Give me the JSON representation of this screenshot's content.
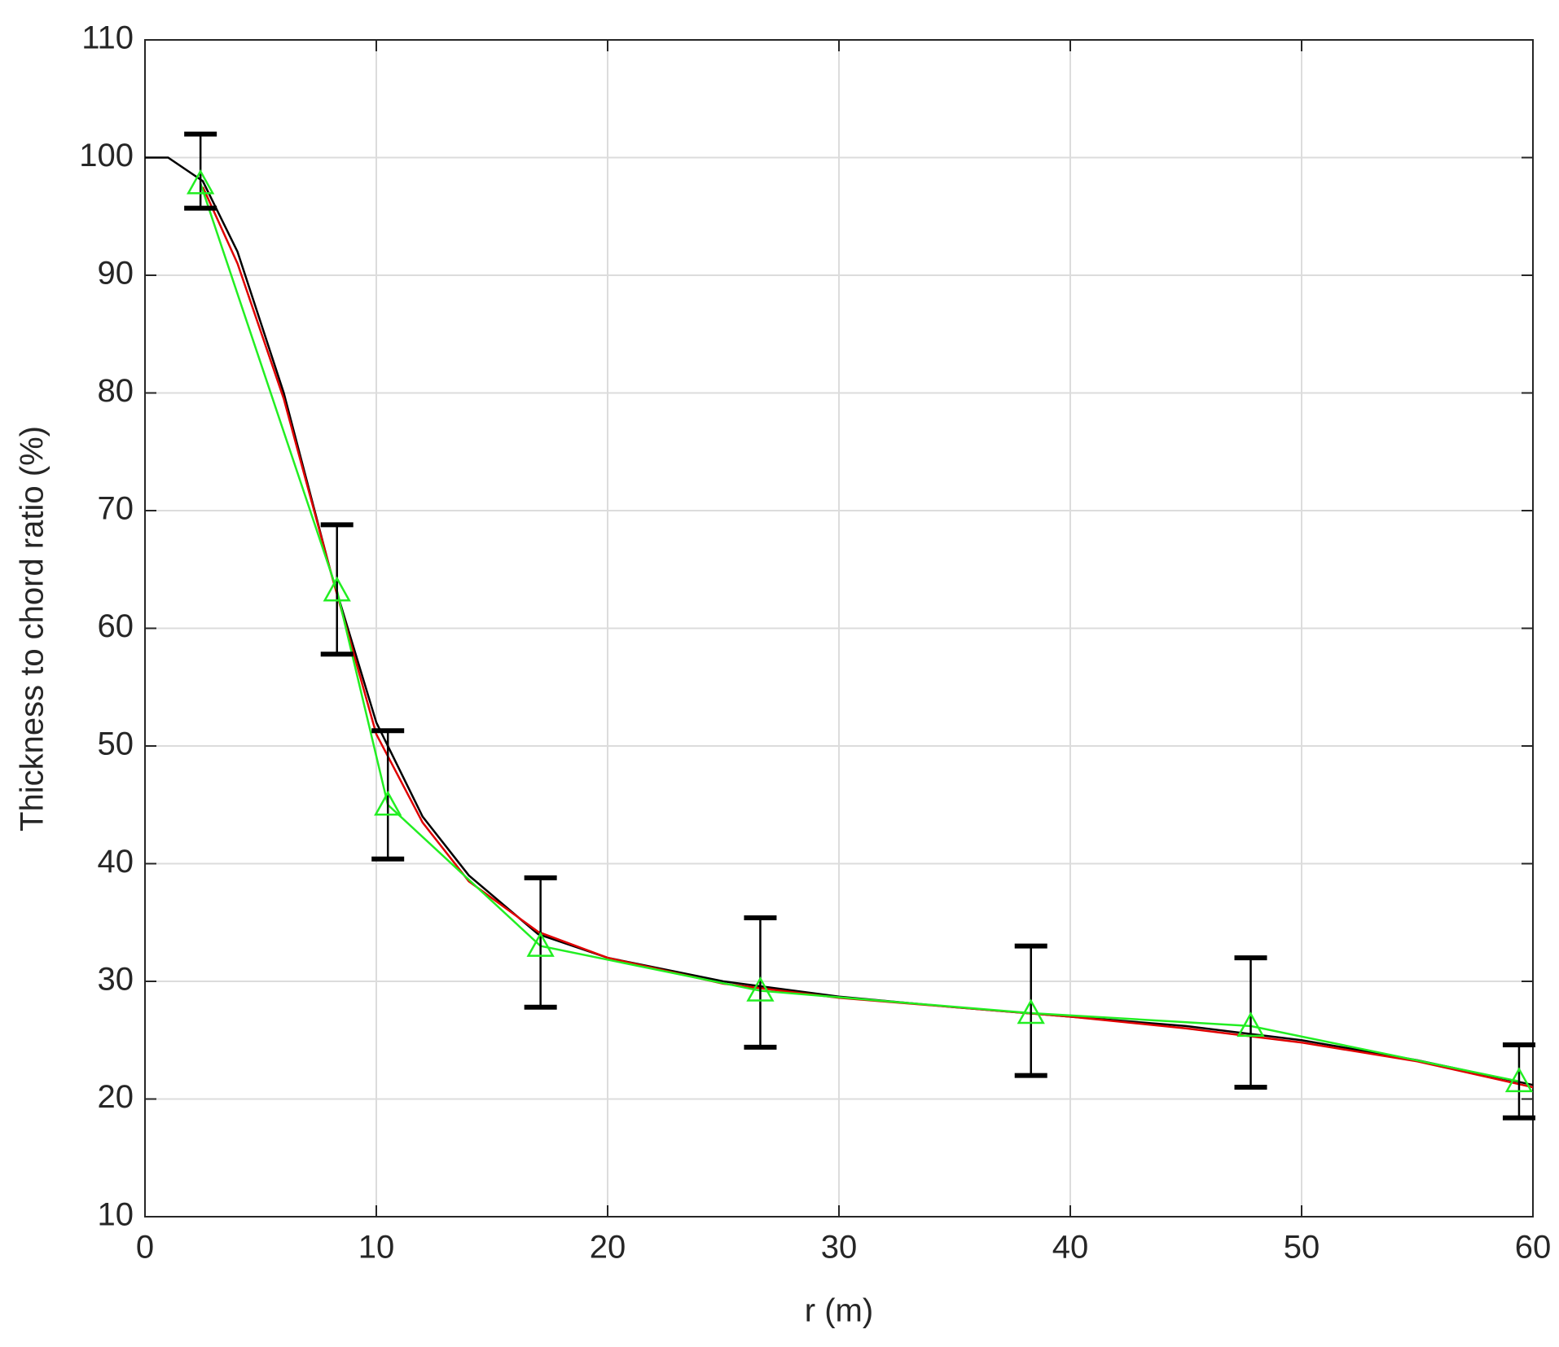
{
  "chart_data": {
    "type": "line",
    "xlabel": "r (m)",
    "ylabel": "Thickness to chord ratio (%)",
    "xlim": [
      0,
      60
    ],
    "ylim": [
      10,
      110
    ],
    "xticks": [
      0,
      10,
      20,
      30,
      40,
      50,
      60
    ],
    "yticks": [
      10,
      20,
      30,
      40,
      50,
      60,
      70,
      80,
      90,
      100,
      110
    ],
    "grid": true,
    "series": [
      {
        "color": "#000000",
        "marker": "none",
        "x": [
          0,
          1,
          2.5,
          4,
          6,
          8,
          10,
          12,
          14,
          17,
          20,
          25,
          30,
          35,
          40,
          45,
          50,
          55,
          60
        ],
        "values": [
          100,
          100,
          98,
          92,
          80,
          65,
          52,
          44,
          39,
          34,
          32,
          30,
          28.7,
          27.8,
          27,
          26.2,
          25,
          23.3,
          21.2
        ]
      },
      {
        "color": "#e00000",
        "marker": "none",
        "x": [
          2.5,
          4,
          6,
          8,
          10,
          12,
          14,
          17,
          20,
          25,
          30,
          35,
          40,
          45,
          50,
          55,
          60
        ],
        "values": [
          97.5,
          91,
          79.5,
          65,
          51,
          43.5,
          38.5,
          34.2,
          32,
          29.8,
          28.6,
          27.8,
          27,
          26,
          24.8,
          23.2,
          21
        ]
      },
      {
        "color": "#22ee22",
        "marker": "triangle",
        "x": [
          2.4,
          8.3,
          10.5,
          17.1,
          26.6,
          38.3,
          47.8,
          59.4
        ],
        "values": [
          97.8,
          63.2,
          45,
          33,
          29.2,
          27.3,
          26.2,
          21.5
        ]
      }
    ],
    "errorbars": {
      "color": "#000000",
      "x": [
        2.4,
        8.3,
        10.5,
        17.1,
        26.6,
        38.3,
        47.8,
        59.4
      ],
      "lower": [
        95.7,
        57.8,
        40.4,
        27.8,
        24.4,
        22,
        21,
        18.4
      ],
      "upper": [
        102,
        68.8,
        51.3,
        38.8,
        35.4,
        33,
        32,
        24.6
      ]
    }
  }
}
